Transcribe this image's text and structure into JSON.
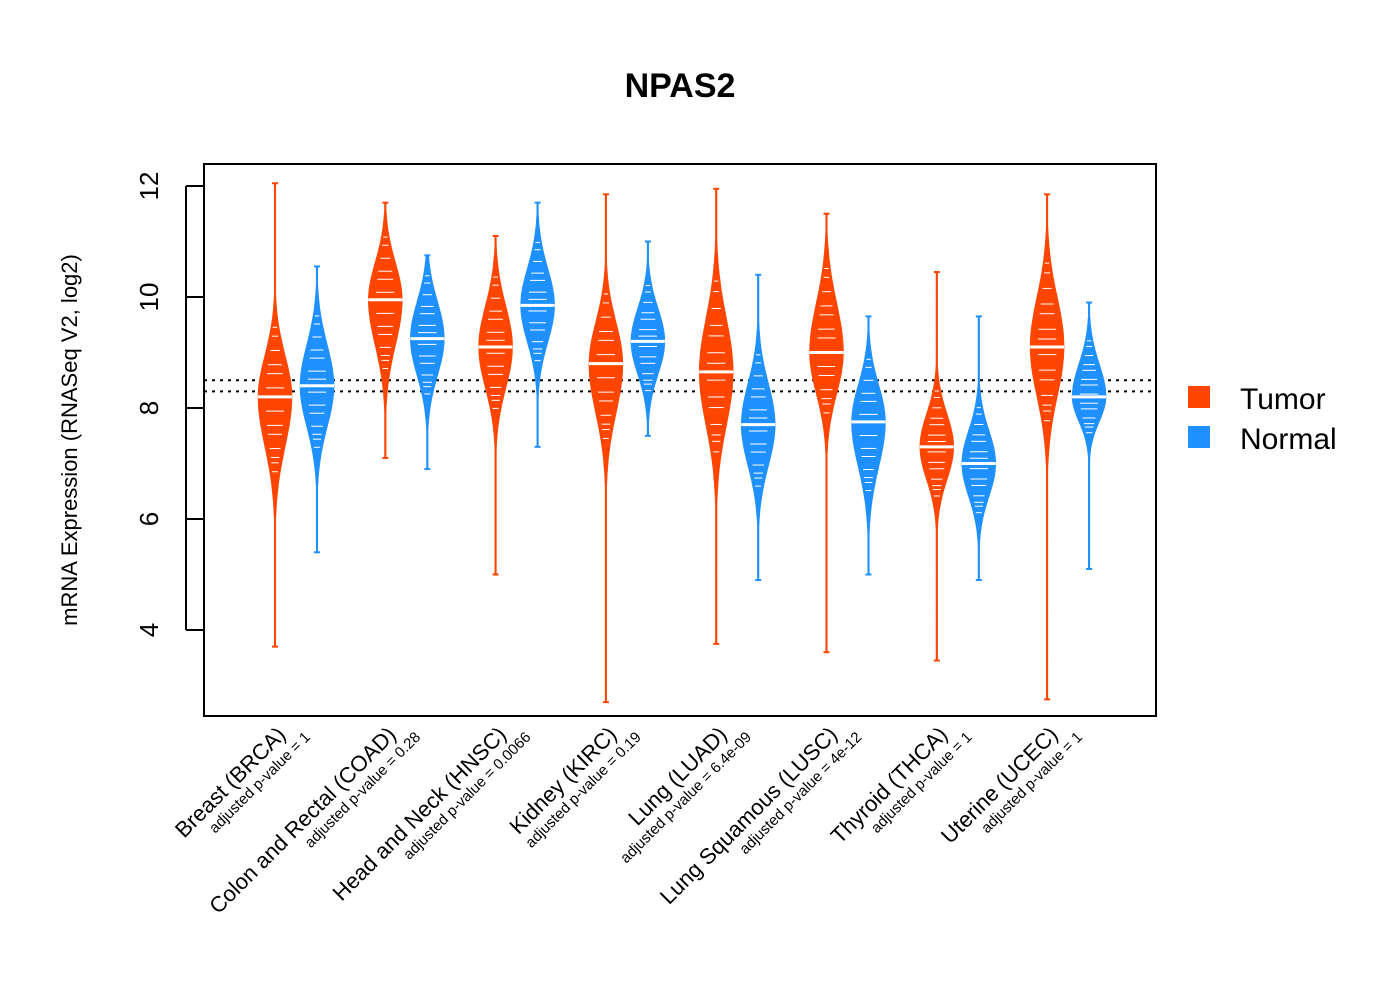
{
  "chart_data": {
    "type": "violin",
    "title": "NPAS2",
    "xlabel": "",
    "ylabel": "mRNA Expression (RNASeq V2, log2)",
    "ylim": [
      2.5,
      12.5
    ],
    "yticks": [
      4,
      6,
      8,
      10,
      12
    ],
    "reference_lines": [
      8.3,
      8.5
    ],
    "legend": {
      "placement": "right",
      "items": [
        {
          "label": "Tumor",
          "color": "#FF4500"
        },
        {
          "label": "Normal",
          "color": "#1E90FF"
        }
      ]
    },
    "categories": [
      {
        "name": "Breast (BRCA)",
        "pvalue": "adjusted p-value = 1",
        "tumor": {
          "min": 3.7,
          "max": 12.05,
          "median": 8.2,
          "q1": 7.6,
          "q3": 8.7
        },
        "normal": {
          "min": 5.4,
          "max": 10.55,
          "median": 8.4,
          "q1": 7.9,
          "q3": 8.9
        }
      },
      {
        "name": "Colon and Rectal (COAD)",
        "pvalue": "adjusted p-value = 0.28",
        "tumor": {
          "min": 7.1,
          "max": 11.7,
          "median": 9.95,
          "q1": 9.4,
          "q3": 10.4
        },
        "normal": {
          "min": 6.9,
          "max": 10.75,
          "median": 9.25,
          "q1": 8.8,
          "q3": 9.7
        }
      },
      {
        "name": "Head and Neck (HNSC)",
        "pvalue": "adjusted p-value = 0.0066",
        "tumor": {
          "min": 5.0,
          "max": 11.1,
          "median": 9.1,
          "q1": 8.6,
          "q3": 9.6
        },
        "normal": {
          "min": 7.3,
          "max": 11.7,
          "median": 9.85,
          "q1": 9.4,
          "q3": 10.3
        }
      },
      {
        "name": "Kidney (KIRC)",
        "pvalue": "adjusted p-value = 0.19",
        "tumor": {
          "min": 2.7,
          "max": 11.85,
          "median": 8.8,
          "q1": 8.2,
          "q3": 9.3
        },
        "normal": {
          "min": 7.5,
          "max": 11.0,
          "median": 9.2,
          "q1": 8.8,
          "q3": 9.6
        }
      },
      {
        "name": "Lung (LUAD)",
        "pvalue": "adjusted p-value = 6.4e-09",
        "tumor": {
          "min": 3.75,
          "max": 11.95,
          "median": 8.65,
          "q1": 8.0,
          "q3": 9.3
        },
        "normal": {
          "min": 4.9,
          "max": 10.4,
          "median": 7.7,
          "q1": 7.2,
          "q3": 8.2
        }
      },
      {
        "name": "Lung Squamous (LUSC)",
        "pvalue": "adjusted p-value = 4e-12",
        "tumor": {
          "min": 3.6,
          "max": 11.5,
          "median": 9.0,
          "q1": 8.5,
          "q3": 9.6
        },
        "normal": {
          "min": 5.0,
          "max": 9.65,
          "median": 7.75,
          "q1": 7.2,
          "q3": 8.2
        }
      },
      {
        "name": "Thyroid (THCA)",
        "pvalue": "adjusted p-value = 1",
        "tumor": {
          "min": 3.45,
          "max": 10.45,
          "median": 7.3,
          "q1": 6.9,
          "q3": 7.7
        },
        "normal": {
          "min": 4.9,
          "max": 9.65,
          "median": 7.0,
          "q1": 6.6,
          "q3": 7.4
        }
      },
      {
        "name": "Uterine (UCEC)",
        "pvalue": "adjusted p-value = 1",
        "tumor": {
          "min": 2.75,
          "max": 11.85,
          "median": 9.1,
          "q1": 8.5,
          "q3": 9.7
        },
        "normal": {
          "min": 5.1,
          "max": 9.9,
          "median": 8.2,
          "q1": 7.9,
          "q3": 8.6
        }
      }
    ]
  }
}
